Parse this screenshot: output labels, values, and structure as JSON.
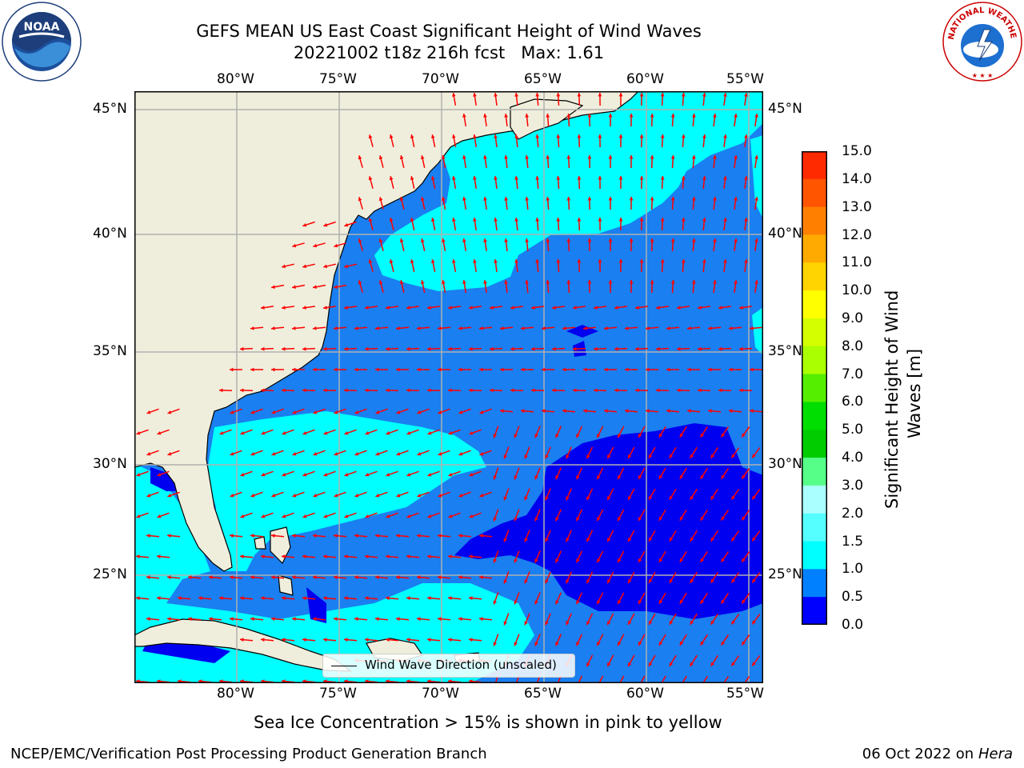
{
  "title": {
    "line1": "GEFS MEAN US East Coast Significant Height of Wind Waves",
    "line2": "20221002 t18z 216h fcst   Max: 1.61"
  },
  "axes": {
    "lon_labels": [
      "80°W",
      "75°W",
      "70°W",
      "65°W",
      "60°W",
      "55°W"
    ],
    "lat_labels": [
      "45°N",
      "40°N",
      "35°N",
      "30°N",
      "25°N"
    ]
  },
  "colorbar": {
    "label_line1": "Significant Height of Wind",
    "label_line2": "Waves [m]",
    "ticks": [
      "15.0",
      "14.0",
      "13.0",
      "12.0",
      "11.0",
      "10.0",
      "9.0",
      "8.0",
      "7.0",
      "6.0",
      "5.0",
      "4.0",
      "3.0",
      "2.0",
      "1.5",
      "1.0",
      "0.5",
      "0.0"
    ],
    "colors": [
      "#ff0000",
      "#ff2a00",
      "#ff5500",
      "#ff8000",
      "#ffaa00",
      "#ffd400",
      "#ffff00",
      "#d4ff00",
      "#aaff00",
      "#55ee00",
      "#00dd00",
      "#00cc00",
      "#55ff88",
      "#aaffff",
      "#55ffff",
      "#00ffff",
      "#0080ff",
      "#0000ff"
    ]
  },
  "map_colors": {
    "land": "#efeedc",
    "band_0_0.5": "#0000f0",
    "band_0.5_1.0": "#1a7ff0",
    "band_1.0_1.5": "#00ffff",
    "band_1.5_2.0": "#55ffff",
    "arrow": "#ff0000",
    "grid": "#b0b0b0"
  },
  "legend": {
    "label": "Wind Wave Direction (unscaled)"
  },
  "seaice_note": "Sea Ice Concentration > 15% is shown in pink to yellow",
  "footer": {
    "left": "NCEP/EMC/Verification Post Processing Product Generation Branch",
    "right_date": "06 Oct 2022 on ",
    "right_machine": "Hera"
  },
  "logos": {
    "noaa_text": "NOAA",
    "nws_text": "NATIONAL WEATHER SERVICE"
  }
}
